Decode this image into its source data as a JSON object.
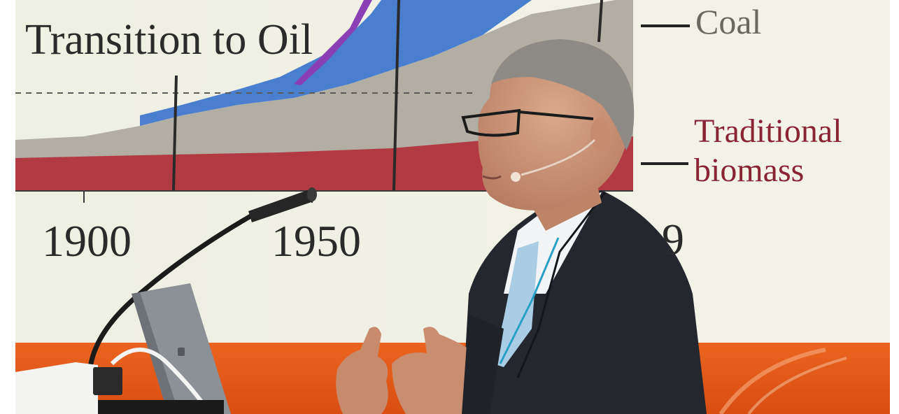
{
  "slide": {
    "title": "Transition to Oil",
    "legend_coal": "Coal",
    "legend_traditional_line1": "Traditional",
    "legend_traditional_line2": "biomass",
    "year_1900": "1900",
    "year_1950": "1950",
    "year_partial": "9"
  },
  "colors": {
    "slide_background": "#f1f2e6",
    "chart_gray": "#b3aea4",
    "chart_blue": "#4a7fd0",
    "chart_purple": "#8a3fb4",
    "biomass_red": "#b23b43",
    "stage_orange": "#e85a1a",
    "jacket": "#24272e",
    "tie": "#a9cde4"
  },
  "icons": [
    "microphone-icon",
    "laptop-icon",
    "headset-mic-icon"
  ]
}
